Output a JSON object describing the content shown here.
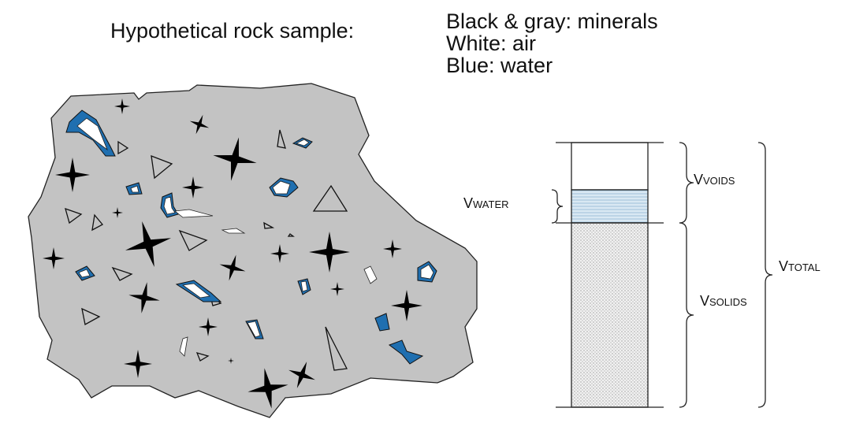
{
  "title": "Hypothetical rock sample:",
  "legend": [
    "Black & gray: minerals",
    "White: air",
    "Blue: water"
  ],
  "labels": {
    "voids": {
      "symbol": "V",
      "subscript": "VOIDS"
    },
    "water": {
      "symbol": "V",
      "subscript": "WATER"
    },
    "solids": {
      "symbol": "V",
      "subscript": "SOLIDS"
    },
    "total": {
      "symbol": "V",
      "subscript": "TOTAL"
    }
  }
}
